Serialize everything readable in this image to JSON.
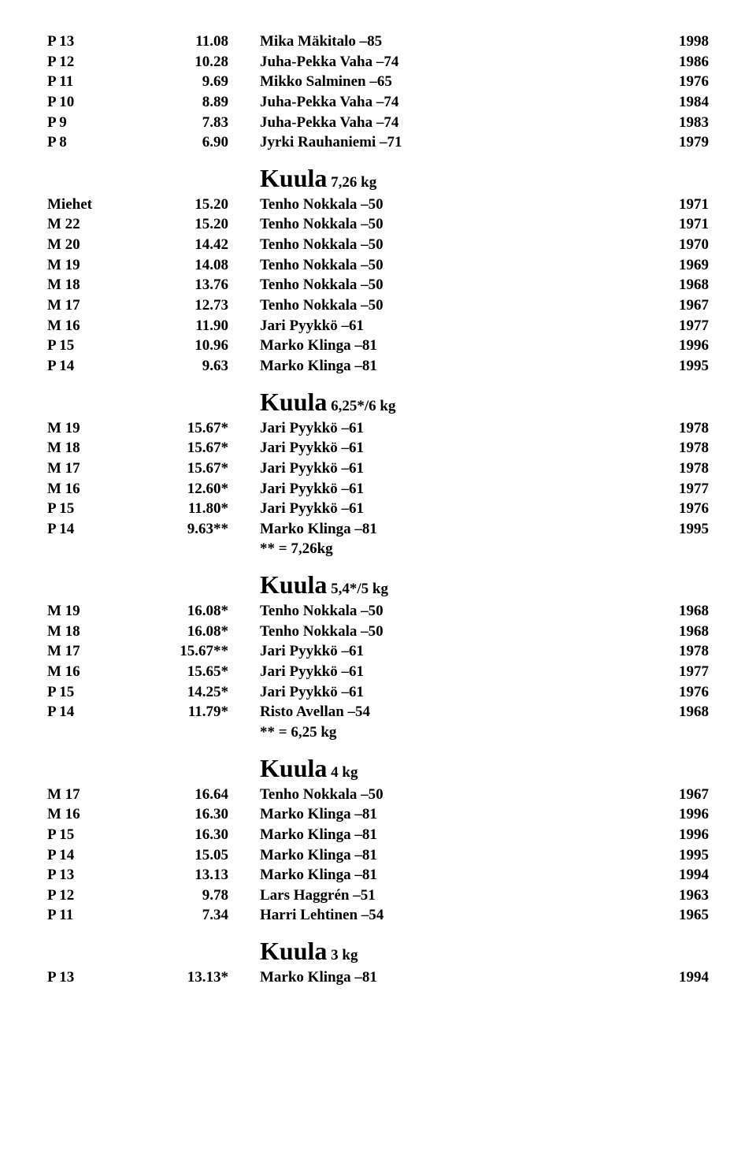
{
  "top_rows": [
    {
      "label": "P 13",
      "value": "11.08",
      "name": "Mika Mäkitalo –85",
      "year": "1998"
    },
    {
      "label": "P 12",
      "value": "10.28",
      "name": "Juha-Pekka Vaha –74",
      "year": "1986"
    },
    {
      "label": "P 11",
      "value": "9.69",
      "name": "Mikko Salminen –65",
      "year": "1976"
    },
    {
      "label": "P 10",
      "value": "8.89",
      "name": "Juha-Pekka Vaha –74",
      "year": "1984"
    },
    {
      "label": "P 9",
      "value": "7.83",
      "name": "Juha-Pekka Vaha –74",
      "year": "1983"
    },
    {
      "label": "P 8",
      "value": "6.90",
      "name": "Jyrki Rauhaniemi –71",
      "year": "1979"
    }
  ],
  "sections": [
    {
      "title_main": "Kuula",
      "title_sub": " 7,26 kg",
      "rows": [
        {
          "label": "Miehet",
          "value": "15.20",
          "name": "Tenho Nokkala –50",
          "year": "1971"
        },
        {
          "label": "M 22",
          "value": "15.20",
          "name": "Tenho Nokkala –50",
          "year": "1971"
        },
        {
          "label": "M 20",
          "value": "14.42",
          "name": "Tenho Nokkala –50",
          "year": "1970"
        },
        {
          "label": "M 19",
          "value": "14.08",
          "name": "Tenho Nokkala –50",
          "year": "1969"
        },
        {
          "label": "M 18",
          "value": "13.76",
          "name": "Tenho Nokkala –50",
          "year": "1968"
        },
        {
          "label": "M 17",
          "value": "12.73",
          "name": "Tenho Nokkala –50",
          "year": "1967"
        },
        {
          "label": "M 16",
          "value": "11.90",
          "name": "Jari Pyykkö –61",
          "year": "1977"
        },
        {
          "label": "P 15",
          "value": "10.96",
          "name": "Marko Klinga –81",
          "year": "1996"
        },
        {
          "label": "P 14",
          "value": "9.63",
          "name": "Marko Klinga –81",
          "year": "1995"
        }
      ]
    },
    {
      "title_main": "Kuula",
      "title_sub": " 6,25*/6 kg",
      "rows": [
        {
          "label": "M 19",
          "value": "15.67*",
          "name": "Jari Pyykkö –61",
          "year": "1978"
        },
        {
          "label": "M 18",
          "value": "15.67*",
          "name": "Jari Pyykkö –61",
          "year": "1978"
        },
        {
          "label": "M 17",
          "value": "15.67*",
          "name": "Jari Pyykkö –61",
          "year": "1978"
        },
        {
          "label": "M 16",
          "value": "12.60*",
          "name": "Jari Pyykkö –61",
          "year": "1977"
        },
        {
          "label": "P 15",
          "value": "11.80*",
          "name": "Jari Pyykkö –61",
          "year": "1976"
        },
        {
          "label": "P 14",
          "value": "9.63**",
          "name": "Marko Klinga –81",
          "year": "1995"
        }
      ],
      "note": "** = 7,26kg"
    },
    {
      "title_main": "Kuula",
      "title_sub": " 5,4*/5 kg",
      "rows": [
        {
          "label": "M 19",
          "value": "16.08*",
          "name": "Tenho Nokkala –50",
          "year": "1968"
        },
        {
          "label": "M 18",
          "value": "16.08*",
          "name": "Tenho Nokkala –50",
          "year": "1968"
        },
        {
          "label": "M 17",
          "value": "15.67**",
          "name": "Jari Pyykkö –61",
          "year": "1978"
        },
        {
          "label": "M 16",
          "value": "15.65*",
          "name": "Jari Pyykkö –61",
          "year": "1977"
        },
        {
          "label": "P 15",
          "value": "14.25*",
          "name": "Jari Pyykkö –61",
          "year": "1976"
        },
        {
          "label": "P 14",
          "value": "11.79*",
          "name": "Risto Avellan –54",
          "year": "1968"
        }
      ],
      "note": "** = 6,25 kg"
    },
    {
      "title_main": "Kuula",
      "title_sub": " 4 kg",
      "rows": [
        {
          "label": "M 17",
          "value": "16.64",
          "name": "Tenho Nokkala –50",
          "year": "1967"
        },
        {
          "label": "M 16",
          "value": "16.30",
          "name": "Marko Klinga –81",
          "year": "1996"
        },
        {
          "label": "P 15",
          "value": "16.30",
          "name": "Marko Klinga –81",
          "year": "1996"
        },
        {
          "label": "P 14",
          "value": "15.05",
          "name": "Marko Klinga –81",
          "year": "1995"
        },
        {
          "label": "P 13",
          "value": "13.13",
          "name": "Marko Klinga –81",
          "year": "1994"
        },
        {
          "label": "P 12",
          "value": "9.78",
          "name": "Lars Haggrén –51",
          "year": "1963"
        },
        {
          "label": "P 11",
          "value": "7.34",
          "name": "Harri Lehtinen –54",
          "year": "1965"
        }
      ]
    },
    {
      "title_main": "Kuula",
      "title_sub": " 3 kg",
      "rows": [
        {
          "label": "P 13",
          "value": "13.13*",
          "name": "Marko Klinga –81",
          "year": "1994"
        }
      ]
    }
  ]
}
